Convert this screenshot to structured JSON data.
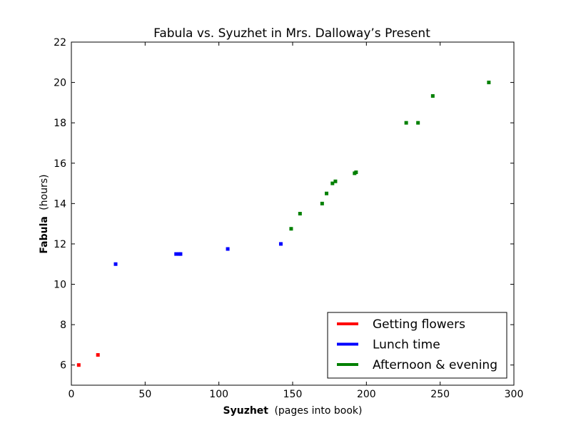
{
  "chart_data": {
    "type": "scatter",
    "title": "Fabula vs. Syuzhet in Mrs. Dalloway’s Present",
    "xlabel": {
      "bold": "Syuzhet",
      "rest": "(pages into book)"
    },
    "ylabel": {
      "bold": "Fabula",
      "rest": "(hours)"
    },
    "xlim": [
      0,
      300
    ],
    "ylim": [
      5,
      22
    ],
    "xticks": [
      0,
      50,
      100,
      150,
      200,
      250,
      300
    ],
    "yticks": [
      6,
      8,
      10,
      12,
      14,
      16,
      18,
      20,
      22
    ],
    "grid": false,
    "legend_position": "bottom-right",
    "series": [
      {
        "name": "Getting flowers",
        "color": "#ff0000",
        "x": [
          5,
          18
        ],
        "y": [
          6.0,
          6.5
        ]
      },
      {
        "name": "Lunch time",
        "color": "#0000ff",
        "x": [
          30,
          71,
          73,
          74,
          106,
          142
        ],
        "y": [
          11.0,
          11.5,
          11.5,
          11.5,
          11.75,
          12.0
        ]
      },
      {
        "name": "Afternoon & evening",
        "color": "#008000",
        "x": [
          149,
          155,
          170,
          173,
          177,
          179,
          192,
          193,
          227,
          235,
          245,
          283
        ],
        "y": [
          12.75,
          13.5,
          14.0,
          14.5,
          15.0,
          15.1,
          15.5,
          15.55,
          18.0,
          18.0,
          19.33,
          20.0
        ]
      }
    ]
  }
}
